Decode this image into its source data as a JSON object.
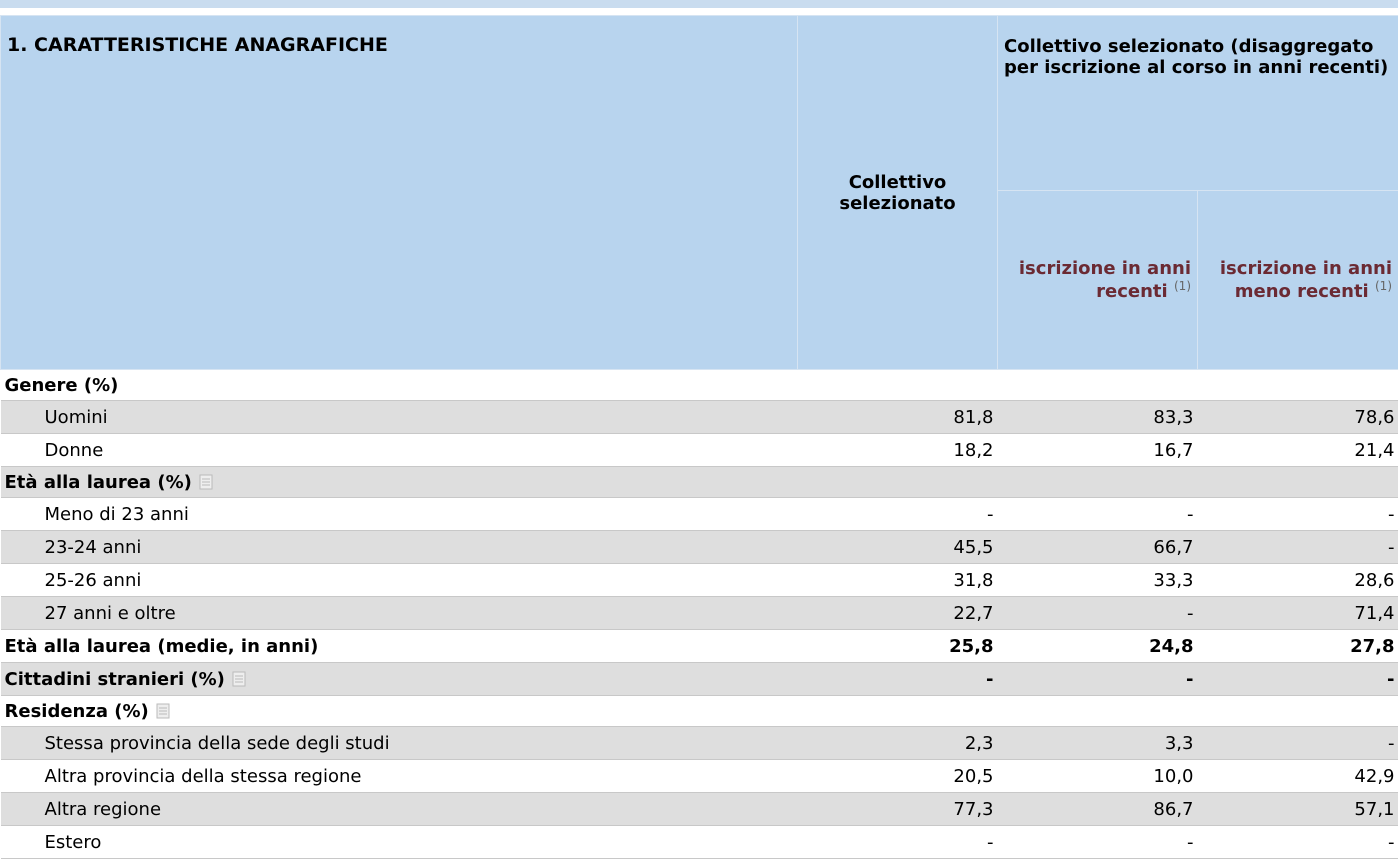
{
  "header": {
    "title": "1. CARATTERISTICHE ANAGRAFICHE",
    "col1": "Collettivo selezionato",
    "group": "Collettivo selezionato (disaggregato per iscrizione al corso in anni recenti)",
    "sub1": "iscrizione in anni recenti",
    "sub2": "iscrizione in anni meno recenti",
    "note": "(1)"
  },
  "rows": [
    {
      "label": "Genere (%)",
      "bold": true
    },
    {
      "label": "Uomini",
      "values": [
        "81,8",
        "83,3",
        "78,6"
      ]
    },
    {
      "label": "Donne",
      "values": [
        "18,2",
        "16,7",
        "21,4"
      ]
    },
    {
      "label": "Età alla laurea (%)",
      "bold": true,
      "icon": true
    },
    {
      "label": "Meno di 23 anni",
      "values": [
        "-",
        "-",
        "-"
      ]
    },
    {
      "label": "23-24 anni",
      "values": [
        "45,5",
        "66,7",
        "-"
      ]
    },
    {
      "label": "25-26 anni",
      "values": [
        "31,8",
        "33,3",
        "28,6"
      ]
    },
    {
      "label": "27 anni e oltre",
      "values": [
        "22,7",
        "-",
        "71,4"
      ]
    },
    {
      "label": "Età alla laurea (medie, in anni)",
      "bold": true,
      "values": [
        "25,8",
        "24,8",
        "27,8"
      ]
    },
    {
      "label": "Cittadini stranieri (%)",
      "bold": true,
      "icon": true,
      "values": [
        "-",
        "-",
        "-"
      ]
    },
    {
      "label": "Residenza (%)",
      "bold": true,
      "icon": true
    },
    {
      "label": "Stessa provincia della sede degli studi",
      "values": [
        "2,3",
        "3,3",
        "-"
      ]
    },
    {
      "label": "Altra provincia della stessa regione",
      "values": [
        "20,5",
        "10,0",
        "42,9"
      ]
    },
    {
      "label": "Altra regione",
      "values": [
        "77,3",
        "86,7",
        "57,1"
      ]
    },
    {
      "label": "Estero",
      "values": [
        "-",
        "-",
        "-"
      ]
    }
  ]
}
